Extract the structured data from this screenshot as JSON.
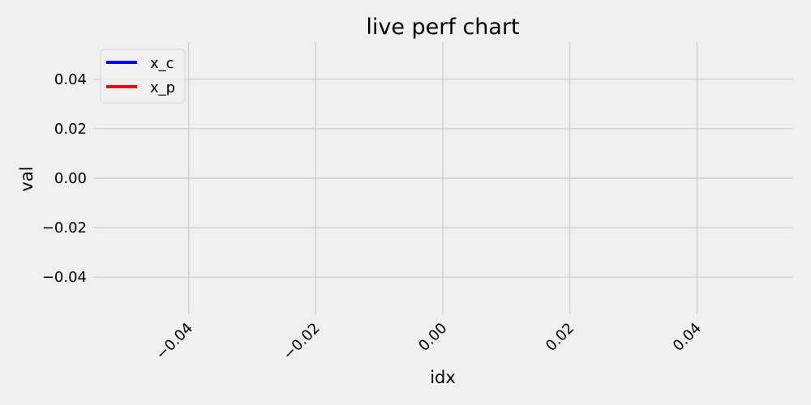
{
  "chart_data": {
    "type": "line",
    "title": "live perf chart",
    "xlabel": "idx",
    "ylabel": "val",
    "xlim": [
      -0.055,
      0.055
    ],
    "ylim": [
      -0.055,
      0.055
    ],
    "xticks": [
      -0.04,
      -0.02,
      0.0,
      0.02,
      0.04
    ],
    "xtick_labels": [
      "−0.04",
      "−0.02",
      "0.00",
      "0.02",
      "0.04"
    ],
    "yticks": [
      0.04,
      0.02,
      0.0,
      -0.02,
      -0.04
    ],
    "ytick_labels": [
      "0.04",
      "0.02",
      "0.00",
      "−0.02",
      "−0.04"
    ],
    "xtick_rotation": 45,
    "grid": true,
    "legend_position": "top-left",
    "series": [
      {
        "name": "x_c",
        "color": "#0000ff",
        "x": [],
        "y": []
      },
      {
        "name": "x_p",
        "color": "#ff0000",
        "x": [],
        "y": []
      }
    ],
    "background": "#f0f0f0"
  }
}
